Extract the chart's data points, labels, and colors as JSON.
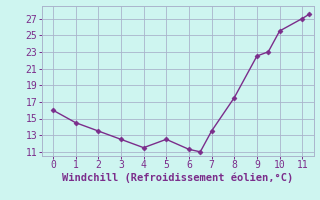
{
  "x": [
    0,
    1,
    2,
    3,
    4,
    5,
    6,
    6.5,
    7,
    8,
    9,
    9.5,
    10,
    11,
    11.3
  ],
  "y": [
    16.0,
    14.5,
    13.5,
    12.5,
    11.5,
    12.5,
    11.3,
    11.0,
    13.5,
    17.5,
    22.5,
    23.0,
    25.5,
    27.0,
    27.5
  ],
  "line_color": "#7b2d8b",
  "marker": "D",
  "marker_size": 2.5,
  "bg_color": "#cef5f0",
  "grid_color": "#aab4cc",
  "xlabel": "Windchill (Refroidissement éolien,°C)",
  "xlabel_color": "#7b2d8b",
  "xlabel_fontsize": 7.5,
  "tick_color": "#7b2d8b",
  "tick_fontsize": 7,
  "xlim": [
    -0.5,
    11.5
  ],
  "ylim": [
    10.5,
    28.5
  ],
  "yticks": [
    11,
    13,
    15,
    17,
    19,
    21,
    23,
    25,
    27
  ],
  "xticks": [
    0,
    1,
    2,
    3,
    4,
    5,
    6,
    7,
    8,
    9,
    10,
    11
  ]
}
